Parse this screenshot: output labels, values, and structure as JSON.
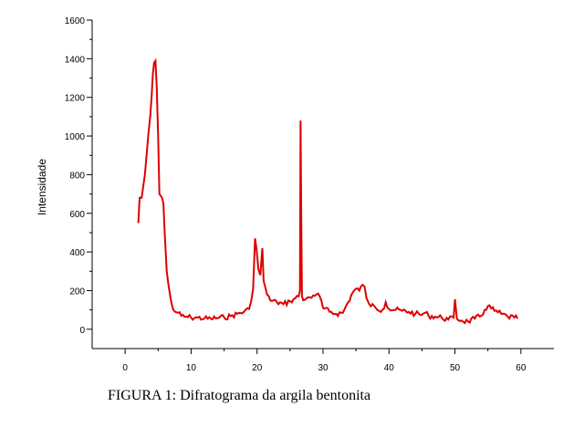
{
  "caption": "FIGURA 1: Difratograma da argila bentonita",
  "chart_data": {
    "type": "line",
    "title": "",
    "xlabel": "",
    "ylabel": "Intensidade",
    "xlim": [
      -5,
      65
    ],
    "ylim": [
      -100,
      1600
    ],
    "xticks": [
      0,
      10,
      20,
      30,
      40,
      50,
      60
    ],
    "yticks": [
      0,
      200,
      400,
      600,
      800,
      1000,
      1200,
      1400,
      1600
    ],
    "grid": false,
    "line_color": "#dd0000",
    "series": [
      {
        "x": [
          2.0,
          2.2,
          2.5,
          3.0,
          3.5,
          3.8,
          4.0,
          4.2,
          4.4,
          4.6,
          4.8,
          5.0,
          5.2,
          5.4,
          5.6,
          5.8,
          6.0,
          6.3,
          6.6,
          6.8,
          7.0,
          7.3,
          7.6,
          8.0,
          8.5,
          9.0,
          10.0,
          11.0,
          12.0,
          13.0,
          14.0,
          15.0,
          16.0,
          17.0,
          18.0,
          18.8,
          19.4,
          19.7,
          19.9,
          20.2,
          20.5,
          20.8,
          21.0,
          21.5,
          22.0,
          23.0,
          24.0,
          25.0,
          25.8,
          26.3,
          26.5,
          26.6,
          26.7,
          26.8,
          27.0,
          27.5,
          28.0,
          28.5,
          29.0,
          29.5,
          30.0,
          31.0,
          32.0,
          33.0,
          33.8,
          34.5,
          35.0,
          35.5,
          36.0,
          36.3,
          36.6,
          37.0,
          38.0,
          39.0,
          39.5,
          40.0,
          41.0,
          42.0,
          43.0,
          44.0,
          45.0,
          45.5,
          46.0,
          47.0,
          48.0,
          49.0,
          49.8,
          50.0,
          50.3,
          51.0,
          52.0,
          53.0,
          54.0,
          54.5,
          55.0,
          56.0,
          57.0,
          58.0,
          59.0,
          59.5
        ],
        "y": [
          550,
          680,
          680,
          800,
          1000,
          1100,
          1200,
          1320,
          1380,
          1390,
          1250,
          1000,
          700,
          690,
          680,
          650,
          500,
          300,
          220,
          180,
          140,
          100,
          90,
          85,
          70,
          65,
          60,
          60,
          55,
          55,
          58,
          62,
          68,
          80,
          90,
          105,
          210,
          470,
          420,
          310,
          280,
          420,
          250,
          180,
          150,
          140,
          130,
          145,
          160,
          170,
          200,
          1080,
          600,
          170,
          150,
          160,
          165,
          175,
          180,
          170,
          110,
          90,
          80,
          85,
          140,
          190,
          210,
          200,
          230,
          220,
          160,
          130,
          110,
          100,
          140,
          105,
          100,
          95,
          90,
          80,
          75,
          85,
          70,
          65,
          60,
          50,
          60,
          155,
          55,
          45,
          40,
          55,
          70,
          100,
          120,
          95,
          80,
          65,
          60,
          55
        ]
      }
    ]
  }
}
